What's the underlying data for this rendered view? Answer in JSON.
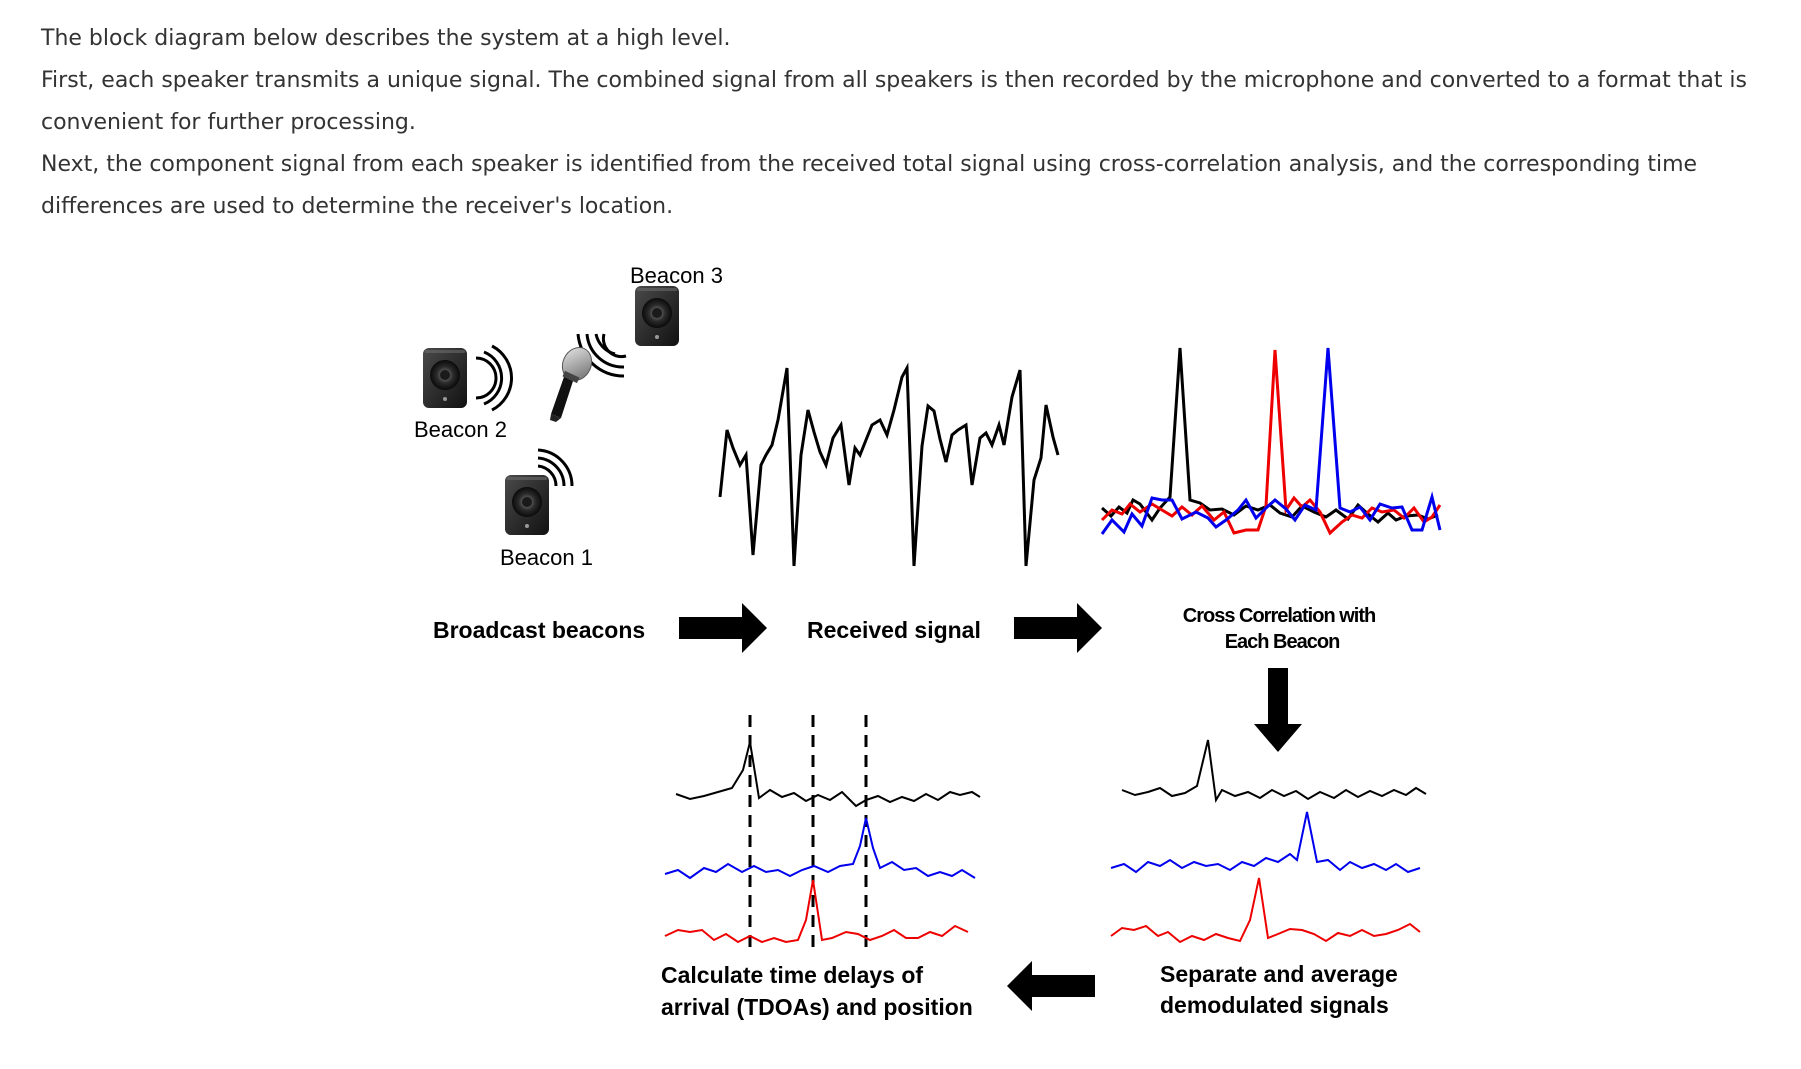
{
  "intro": {
    "p1": "The block diagram below describes the system at a high level.",
    "p2": "First, each speaker transmits a unique signal. The combined signal from all speakers is then recorded by the microphone and converted to a format that is convenient for further processing.",
    "p3": "Next, the component signal from each speaker is identified from the received total signal using cross-correlation analysis, and the corresponding time differences are used to determine the receiver's location."
  },
  "beacons": {
    "b1": "Beacon 1",
    "b2": "Beacon 2",
    "b3": "Beacon 3"
  },
  "steps": {
    "broadcast": "Broadcast beacons",
    "received": "Received signal",
    "crosscorr_1": "Cross Correlation with",
    "crosscorr_2": "Each Beacon",
    "separate_1": "Separate and average",
    "separate_2": "demodulated signals",
    "calc_1": "Calculate time delays of",
    "calc_2": "arrival (TDOAs) and position"
  },
  "colors": {
    "beacon1": "#000000",
    "beacon2": "#0000ee",
    "beacon3": "#ee0000",
    "text": "#333333"
  },
  "icons": {
    "speaker": "speaker-icon",
    "microphone": "microphone-icon",
    "waves": "sound-waves-icon",
    "arrow": "arrow-icon"
  }
}
